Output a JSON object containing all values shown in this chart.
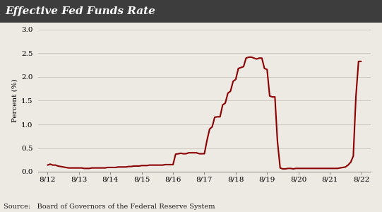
{
  "title": "Effective Fed Funds Rate",
  "ylabel": "Percent (%)",
  "source": "Source:   Board of Governors of the Federal Reserve System",
  "line_color": "#8B0000",
  "line_width": 1.5,
  "background_color": "#ede9e3",
  "title_bg_color": "#3d3d3d",
  "title_text_color": "#ffffff",
  "ylim": [
    0,
    3.0
  ],
  "yticks": [
    0.0,
    0.5,
    1.0,
    1.5,
    2.0,
    2.5,
    3.0
  ],
  "xtick_labels": [
    "8/12",
    "8/13",
    "8/14",
    "8/15",
    "8/16",
    "8/17",
    "8/18",
    "8/19",
    "8/20",
    "8/21",
    "8/22"
  ],
  "x": [
    0,
    0.083,
    0.167,
    0.25,
    0.33,
    0.417,
    0.5,
    0.583,
    0.667,
    0.75,
    0.833,
    0.917,
    1.0,
    1.083,
    1.167,
    1.25,
    1.33,
    1.417,
    1.5,
    1.583,
    1.667,
    1.75,
    1.833,
    1.917,
    2.0,
    2.083,
    2.167,
    2.25,
    2.33,
    2.417,
    2.5,
    2.583,
    2.667,
    2.75,
    2.833,
    2.917,
    3.0,
    3.083,
    3.167,
    3.25,
    3.33,
    3.417,
    3.5,
    3.583,
    3.667,
    3.75,
    3.833,
    3.917,
    4.0,
    4.083,
    4.167,
    4.25,
    4.33,
    4.417,
    4.5,
    4.583,
    4.667,
    4.75,
    4.833,
    4.917,
    5.0,
    5.083,
    5.167,
    5.25,
    5.33,
    5.417,
    5.5,
    5.583,
    5.667,
    5.75,
    5.833,
    5.917,
    6.0,
    6.083,
    6.167,
    6.25,
    6.33,
    6.417,
    6.5,
    6.583,
    6.667,
    6.75,
    6.833,
    6.917,
    7.0,
    7.083,
    7.167,
    7.25,
    7.33,
    7.417,
    7.5,
    7.583,
    7.667,
    7.75,
    7.833,
    7.917,
    8.0,
    8.083,
    8.167,
    8.25,
    8.33,
    8.417,
    8.5,
    8.583,
    8.667,
    8.75,
    8.833,
    8.917,
    9.0,
    9.083,
    9.167,
    9.25,
    9.33,
    9.417,
    9.5,
    9.583,
    9.667,
    9.75,
    9.833,
    9.917,
    10.0
  ],
  "y": [
    0.14,
    0.16,
    0.14,
    0.14,
    0.12,
    0.11,
    0.1,
    0.09,
    0.08,
    0.08,
    0.08,
    0.08,
    0.08,
    0.08,
    0.07,
    0.07,
    0.07,
    0.08,
    0.08,
    0.08,
    0.08,
    0.08,
    0.08,
    0.09,
    0.09,
    0.09,
    0.09,
    0.1,
    0.1,
    0.1,
    0.1,
    0.11,
    0.11,
    0.12,
    0.12,
    0.12,
    0.13,
    0.13,
    0.13,
    0.14,
    0.14,
    0.14,
    0.14,
    0.14,
    0.14,
    0.15,
    0.15,
    0.15,
    0.15,
    0.37,
    0.38,
    0.39,
    0.38,
    0.38,
    0.4,
    0.4,
    0.4,
    0.4,
    0.38,
    0.38,
    0.38,
    0.66,
    0.9,
    0.95,
    1.15,
    1.16,
    1.16,
    1.41,
    1.45,
    1.66,
    1.7,
    1.91,
    1.95,
    2.18,
    2.2,
    2.22,
    2.4,
    2.42,
    2.42,
    2.4,
    2.38,
    2.4,
    2.4,
    2.18,
    2.16,
    1.6,
    1.58,
    1.58,
    0.65,
    0.08,
    0.06,
    0.06,
    0.07,
    0.07,
    0.06,
    0.07,
    0.07,
    0.07,
    0.07,
    0.07,
    0.07,
    0.07,
    0.07,
    0.07,
    0.07,
    0.07,
    0.07,
    0.07,
    0.07,
    0.07,
    0.07,
    0.07,
    0.08,
    0.09,
    0.1,
    0.14,
    0.2,
    0.33,
    1.58,
    2.33,
    2.33
  ]
}
